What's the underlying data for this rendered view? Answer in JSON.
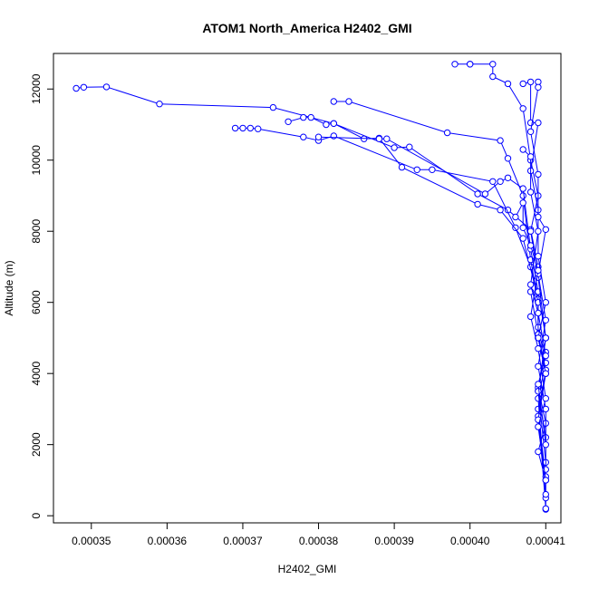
{
  "chart_data": {
    "type": "line",
    "title": "ATOM1 North_America H2402_GMI",
    "xlabel": "H2402_GMI",
    "ylabel": "Altitude (m)",
    "xlim": [
      0.000345,
      0.000412
    ],
    "ylim": [
      -200,
      13000
    ],
    "x_ticks": [
      0.00035,
      0.00036,
      0.00037,
      0.00038,
      0.00039,
      0.0004,
      0.00041
    ],
    "x_tick_labels": [
      "0.00035",
      "0.00036",
      "0.00037",
      "0.00038",
      "0.00039",
      "0.00040",
      "0.00041"
    ],
    "y_ticks": [
      0,
      2000,
      4000,
      6000,
      8000,
      10000,
      12000
    ],
    "y_tick_labels": [
      "0",
      "2000",
      "4000",
      "6000",
      "8000",
      "10000",
      "12000"
    ],
    "grid": false,
    "marker": "open-circle",
    "series_color": "#0000ff",
    "series": [
      {
        "x": [
          0.000348,
          0.000349,
          0.000352,
          0.000359,
          0.000374,
          0.000382,
          0.00039,
          0.000392,
          0.000401,
          0.000405,
          0.000408,
          0.000409,
          0.000408,
          0.000409,
          0.00041,
          0.000409,
          0.00041,
          0.000409,
          0.00041,
          0.00041
        ],
        "y": [
          12020,
          12050,
          12060,
          11580,
          11480,
          11030,
          10350,
          10370,
          9050,
          8600,
          8050,
          7000,
          6300,
          5100,
          4600,
          3600,
          2600,
          1800,
          1000,
          180
        ]
      },
      {
        "x": [
          0.000369,
          0.00037,
          0.000371,
          0.000372,
          0.000378,
          0.00038,
          0.000382,
          0.000393,
          0.000395,
          0.000403,
          0.000406,
          0.000408,
          0.000409,
          0.000409,
          0.00041,
          0.000409,
          0.00041
        ],
        "y": [
          10900,
          10900,
          10900,
          10880,
          10650,
          10550,
          10680,
          9730,
          9730,
          9400,
          8100,
          7000,
          6200,
          5000,
          4000,
          3000,
          200
        ]
      },
      {
        "x": [
          0.000376,
          0.000378,
          0.000379,
          0.000381,
          0.000382,
          0.000386,
          0.000388,
          0.000391,
          0.000401,
          0.000404,
          0.000407,
          0.000409,
          0.000409,
          0.00041,
          0.000409,
          0.00041
        ],
        "y": [
          11080,
          11200,
          11200,
          11000,
          11030,
          10600,
          10620,
          9800,
          8760,
          8600,
          7800,
          6100,
          5300,
          4300,
          3300,
          500
        ]
      },
      {
        "x": [
          0.000382,
          0.000384,
          0.000397,
          0.000404,
          0.000405,
          0.000407,
          0.000408,
          0.000409,
          0.000409,
          0.00041,
          0.000409,
          0.00041
        ],
        "y": [
          11650,
          11650,
          10770,
          10550,
          10050,
          9000,
          7200,
          6000,
          5100,
          4100,
          2800,
          1100
        ]
      },
      {
        "x": [
          0.00038,
          0.000388,
          0.000389,
          0.000402,
          0.000404,
          0.000405,
          0.000407,
          0.000408,
          0.000409,
          0.00041,
          0.000409,
          0.00041
        ],
        "y": [
          10650,
          10600,
          10600,
          9050,
          9400,
          9500,
          9200,
          7500,
          6300,
          5000,
          3500,
          1500
        ]
      },
      {
        "x": [
          0.000398,
          0.0004,
          0.0004,
          0.000403,
          0.000403,
          0.000405,
          0.000407,
          0.000408,
          0.000409,
          0.000408,
          0.000409,
          0.00041,
          0.000409,
          0.00041
        ],
        "y": [
          12700,
          12700,
          12700,
          12700,
          12350,
          12150,
          11450,
          10000,
          9000,
          8000,
          6700,
          5000,
          3500,
          2200
        ]
      },
      {
        "x": [
          0.000407,
          0.000408,
          0.000408,
          0.000409,
          0.000408,
          0.000409,
          0.000409,
          0.00041,
          0.000409,
          0.00041,
          0.000409,
          0.00041
        ],
        "y": [
          12150,
          12200,
          11050,
          11050,
          9700,
          8600,
          7300,
          6000,
          5000,
          4000,
          2700,
          600
        ]
      },
      {
        "x": [
          0.000409,
          0.000409,
          0.000408,
          0.000409,
          0.000409,
          0.00041,
          0.000409,
          0.00041,
          0.000409,
          0.00041,
          0.00041
        ],
        "y": [
          12200,
          12050,
          10800,
          9600,
          8400,
          8050,
          6800,
          5500,
          4200,
          3000,
          1300
        ]
      },
      {
        "x": [
          0.000406,
          0.000407,
          0.000407,
          0.000408,
          0.000409,
          0.000408,
          0.000409,
          0.00041,
          0.000409,
          0.00041
        ],
        "y": [
          8400,
          8800,
          8100,
          7600,
          6900,
          5600,
          4700,
          3300,
          2500,
          1000
        ]
      },
      {
        "x": [
          0.000407,
          0.000408,
          0.000408,
          0.000409,
          0.000408,
          0.000409,
          0.00041,
          0.000409,
          0.00041
        ],
        "y": [
          10300,
          10100,
          9100,
          8000,
          6500,
          5700,
          4500,
          3700,
          2000
        ]
      }
    ]
  }
}
